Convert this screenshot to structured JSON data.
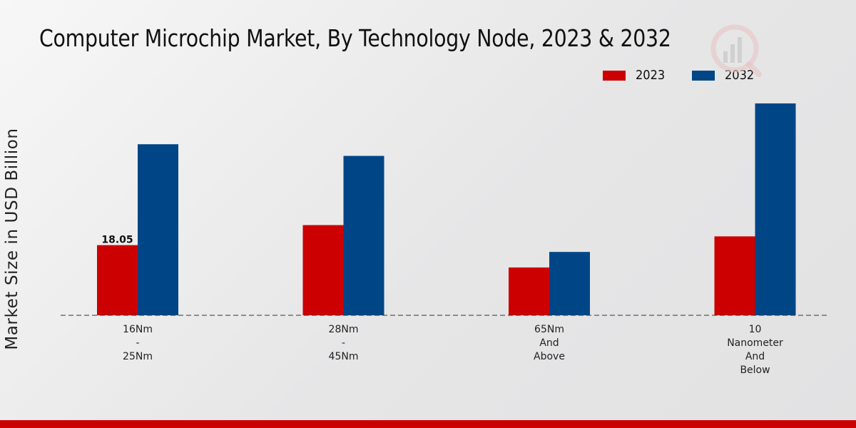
{
  "chart_data": {
    "type": "bar",
    "title": "Computer Microchip Market, By Technology Node, 2023 & 2032",
    "xlabel": "",
    "ylabel": "Market Size in USD Billion",
    "categories": [
      [
        "16Nm",
        "-",
        "25Nm"
      ],
      [
        "28Nm",
        "-",
        "45Nm"
      ],
      [
        "65Nm",
        "And",
        "Above"
      ],
      [
        "10",
        "Nanometer",
        "And",
        "Below"
      ]
    ],
    "series": [
      {
        "name": "2023",
        "color": "#cc0000",
        "values": [
          18.05,
          23.2,
          12.3,
          20.3
        ]
      },
      {
        "name": "2032",
        "color": "#004687",
        "values": [
          44.0,
          41.0,
          16.3,
          54.5
        ]
      }
    ],
    "data_labels": [
      {
        "series": 0,
        "index": 0,
        "text": "18.05"
      }
    ],
    "ylim": [
      0,
      60
    ],
    "grid": false,
    "legend_position": "top-right"
  }
}
